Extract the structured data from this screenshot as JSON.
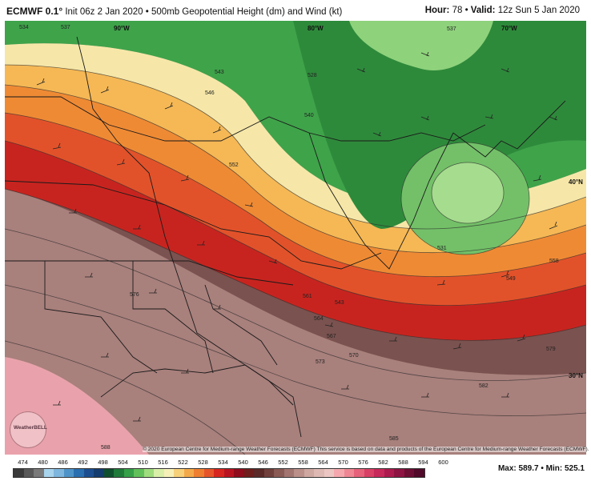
{
  "header": {
    "model": "ECMWF 0.1°",
    "description": "Init 06z 2 Jan 2020 • 500mb Geopotential Height (dm) and Wind (kt)",
    "hour_label": "Hour:",
    "hour_value": "78",
    "valid_label": "Valid:",
    "valid_value": "12z Sun 5 Jan 2020"
  },
  "map": {
    "lon_labels": [
      "90°W",
      "80°W",
      "70°W"
    ],
    "lat_labels": [
      "40°N",
      "30°N"
    ],
    "contour_labels": [
      "534",
      "537",
      "540",
      "546",
      "543",
      "552",
      "528",
      "537",
      "531",
      "543",
      "549",
      "558",
      "561",
      "564",
      "567",
      "570",
      "573",
      "576",
      "579",
      "582",
      "585",
      "588"
    ],
    "logo_text": "WeatherBELL"
  },
  "copyright": "© 2020 European Centre for Medium-range Weather Forecasts (ECMWF) This service is based on data and products of the European Centre for Medium-range Weather Forecasts (ECMWF).",
  "legend": {
    "labels": [
      "474",
      "480",
      "486",
      "492",
      "498",
      "504",
      "510",
      "516",
      "522",
      "528",
      "534",
      "540",
      "546",
      "552",
      "558",
      "564",
      "570",
      "576",
      "582",
      "588",
      "594",
      "600"
    ],
    "colors": [
      "#3a3a3a",
      "#595959",
      "#7a7a7a",
      "#a8d4ec",
      "#7fb6dd",
      "#4f94c8",
      "#2a6fb0",
      "#1c4e8f",
      "#143c6e",
      "#0f4f2e",
      "#1f7a3a",
      "#35a048",
      "#62c05a",
      "#9fdc7e",
      "#d9efa8",
      "#f6f0b8",
      "#f7d07a",
      "#f3a94a",
      "#ee7f30",
      "#e6552a",
      "#d7261f",
      "#b81420",
      "#8f0d1d",
      "#6e1e1c",
      "#5a2a28",
      "#6f403c",
      "#8a5a55",
      "#a37570",
      "#bb908a",
      "#cfa8a2",
      "#deb9b4",
      "#ecc6c2",
      "#f4a8ad",
      "#ee8793",
      "#e5627a",
      "#d94065",
      "#c7295a",
      "#ad1a4e",
      "#8d1442",
      "#6d0e35",
      "#520a2a"
    ],
    "max_label": "Max:",
    "max_value": "589.7",
    "min_label": "Min:",
    "min_value": "525.1"
  }
}
